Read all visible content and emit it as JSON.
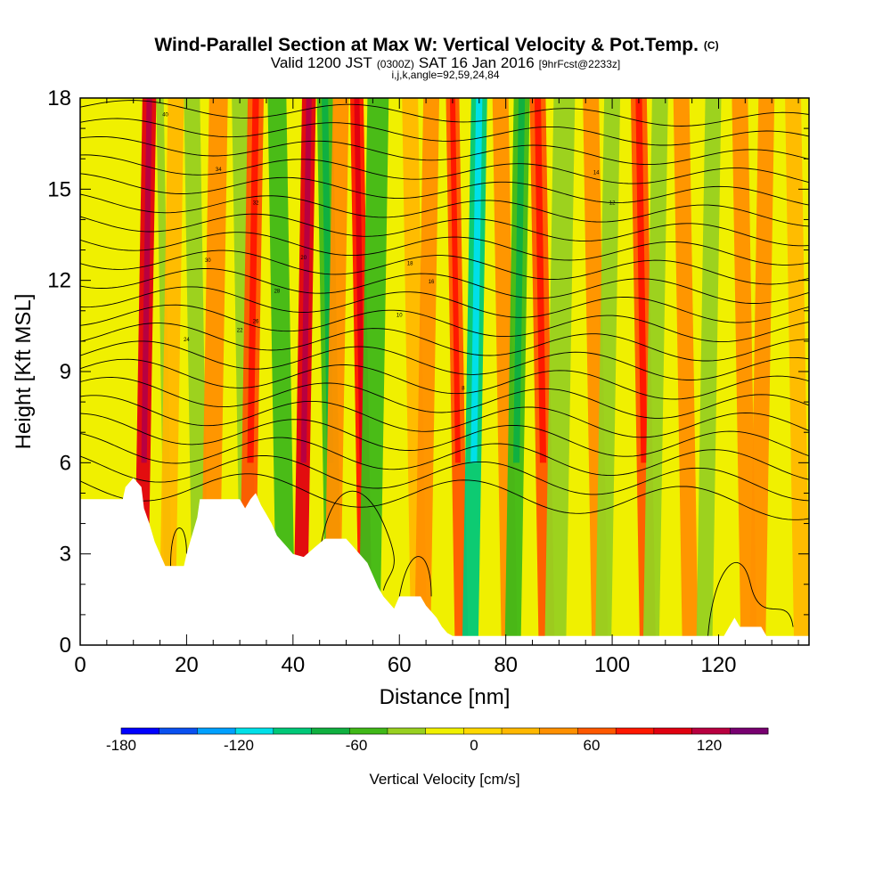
{
  "title": {
    "main": "Wind-Parallel Section at Max W: Vertical Velocity & Pot.Temp.",
    "main_tag": "(C)",
    "valid_prefix": "Valid 1200 JST",
    "valid_utc": "(0300Z)",
    "valid_date": "SAT 16 Jan 2016",
    "forecast": "[9hrFcst@2233z]",
    "indices": "i,j,k,angle=92,59,24,84"
  },
  "chart_data": {
    "type": "heatmap",
    "xlabel": "Distance [nm]",
    "ylabel": "Height [Kft MSL]",
    "xlim": [
      0,
      137
    ],
    "ylim": [
      0,
      18
    ],
    "x_ticks": [
      0,
      20,
      40,
      60,
      80,
      100,
      120
    ],
    "y_ticks": [
      0,
      3,
      6,
      9,
      12,
      15,
      18
    ],
    "colorbar": {
      "label": "Vertical Velocity [cm/s]",
      "range": [
        -180,
        150
      ],
      "step": 20,
      "tick_values": [
        -180,
        -120,
        -60,
        0,
        60,
        120
      ],
      "colors": [
        "#0000ff",
        "#0a50f0",
        "#00a0ff",
        "#00e0e8",
        "#00c878",
        "#10b040",
        "#40b818",
        "#98d020",
        "#f0f000",
        "#ffd800",
        "#ffb800",
        "#ff9000",
        "#ff5800",
        "#ff1800",
        "#e00010",
        "#b80040",
        "#780070"
      ]
    },
    "terrain_profile": [
      [
        0,
        4.8
      ],
      [
        8,
        4.8
      ],
      [
        8.5,
        5.2
      ],
      [
        10,
        5.5
      ],
      [
        11.5,
        5.2
      ],
      [
        12,
        4.5
      ],
      [
        13,
        4
      ],
      [
        14,
        3.4
      ],
      [
        15,
        3.0
      ],
      [
        16,
        2.6
      ],
      [
        19.5,
        2.6
      ],
      [
        20,
        3.0
      ],
      [
        21,
        3.6
      ],
      [
        22,
        4.2
      ],
      [
        22.5,
        4.8
      ],
      [
        30,
        4.8
      ],
      [
        31,
        4.5
      ],
      [
        32,
        4.8
      ],
      [
        33,
        5.0
      ],
      [
        34,
        4.6
      ],
      [
        35,
        4.3
      ],
      [
        36,
        4.0
      ],
      [
        37,
        3.6
      ],
      [
        38,
        3.4
      ],
      [
        39,
        3.2
      ],
      [
        40,
        3.0
      ],
      [
        42,
        2.9
      ],
      [
        44,
        3.2
      ],
      [
        46,
        3.5
      ],
      [
        50,
        3.5
      ],
      [
        51,
        3.3
      ],
      [
        52,
        3.1
      ],
      [
        54,
        2.7
      ],
      [
        55,
        2.3
      ],
      [
        56,
        1.9
      ],
      [
        57,
        1.6
      ],
      [
        58,
        1.4
      ],
      [
        59,
        1.2
      ],
      [
        60,
        1.6
      ],
      [
        64,
        1.6
      ],
      [
        65,
        1.3
      ],
      [
        66,
        1.1
      ],
      [
        67,
        0.9
      ],
      [
        68,
        0.6
      ],
      [
        69,
        0.4
      ],
      [
        70,
        0.3
      ],
      [
        121,
        0.3
      ],
      [
        122,
        0.6
      ],
      [
        123,
        0.9
      ],
      [
        124,
        0.6
      ],
      [
        125,
        0.6
      ],
      [
        128,
        0.6
      ],
      [
        129,
        0.3
      ],
      [
        137,
        0.3
      ]
    ],
    "velocity_columns": [
      {
        "x": 13,
        "w": 2.6,
        "value": 100
      },
      {
        "x": 15,
        "w": 1.4,
        "value": -40
      },
      {
        "x": 18,
        "w": 3,
        "value": 20
      },
      {
        "x": 21,
        "w": 3,
        "value": -30
      },
      {
        "x": 26,
        "w": 3.5,
        "value": 40
      },
      {
        "x": 30,
        "w": 3,
        "value": -40
      },
      {
        "x": 33,
        "w": 3,
        "value": 60
      },
      {
        "x": 37,
        "w": 3.5,
        "value": -50
      },
      {
        "x": 43,
        "w": 2.6,
        "value": 110
      },
      {
        "x": 46,
        "w": 3,
        "value": -60
      },
      {
        "x": 49,
        "w": 3,
        "value": 40
      },
      {
        "x": 52,
        "w": 2.5,
        "value": 90
      },
      {
        "x": 56,
        "w": 4,
        "value": -50
      },
      {
        "x": 62,
        "w": 3,
        "value": 30
      },
      {
        "x": 66,
        "w": 3,
        "value": 40
      },
      {
        "x": 70,
        "w": 2.5,
        "value": 70
      },
      {
        "x": 75,
        "w": 3,
        "value": -90
      },
      {
        "x": 79,
        "w": 3,
        "value": 50
      },
      {
        "x": 83,
        "w": 3,
        "value": -60
      },
      {
        "x": 86,
        "w": 3,
        "value": 60
      },
      {
        "x": 91,
        "w": 4,
        "value": -40
      },
      {
        "x": 96,
        "w": 3,
        "value": 50
      },
      {
        "x": 100,
        "w": 3,
        "value": -40
      },
      {
        "x": 105,
        "w": 3,
        "value": 60
      },
      {
        "x": 109,
        "w": 3,
        "value": -40
      },
      {
        "x": 113,
        "w": 3,
        "value": 40
      },
      {
        "x": 119,
        "w": 3,
        "value": -40
      },
      {
        "x": 124,
        "w": 3,
        "value": 40
      },
      {
        "x": 129,
        "w": 3,
        "value": 50
      },
      {
        "x": 134,
        "w": 3,
        "value": 20
      }
    ],
    "isentrope_labels": [
      "40",
      "34",
      "32",
      "30",
      "28",
      "26",
      "24",
      "22",
      "20",
      "18",
      "16",
      "14",
      "12",
      "10",
      "8"
    ]
  }
}
